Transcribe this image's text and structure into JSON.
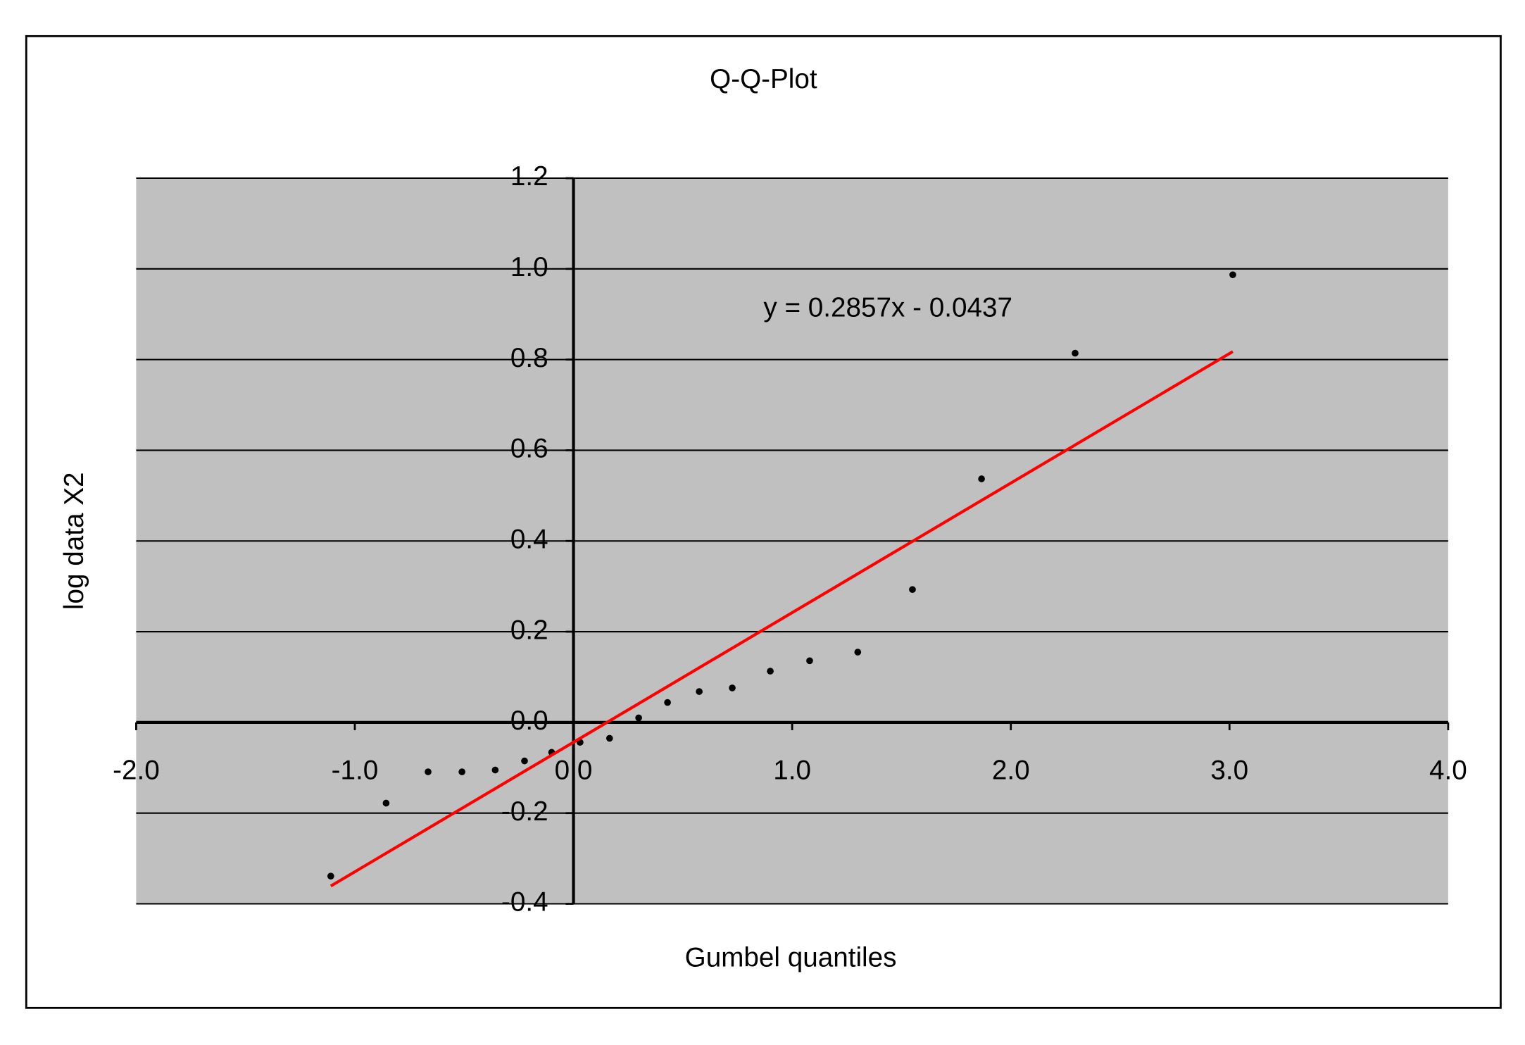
{
  "chart_data": {
    "type": "scatter",
    "title": "Q-Q-Plot",
    "x_label": "Gumbel quantiles",
    "y_label": "log data X2",
    "x": [
      -1.11,
      -0.857,
      -0.665,
      -0.51,
      -0.358,
      -0.224,
      -0.1,
      0.03,
      0.165,
      0.298,
      0.43,
      0.575,
      0.726,
      0.9,
      1.08,
      1.3,
      1.55,
      1.866,
      2.294,
      3.015
    ],
    "values": [
      -0.339,
      -0.178,
      -0.109,
      -0.109,
      -0.105,
      -0.085,
      -0.066,
      -0.044,
      -0.035,
      0.01,
      0.044,
      0.068,
      0.076,
      0.113,
      0.136,
      0.155,
      0.293,
      0.537,
      0.814,
      0.987
    ],
    "color": "#000000",
    "trendline": {
      "equation": "y = 0.2857x - 0.0437",
      "slope": 0.2857,
      "intercept": -0.0437,
      "color": "#ff0000"
    },
    "xlim": [
      -2,
      4
    ],
    "xticks": [
      {
        "value": -2,
        "label": "-2.0"
      },
      {
        "value": -1,
        "label": "-1.0"
      },
      {
        "value": 0,
        "label": "0.0"
      },
      {
        "value": 1,
        "label": "1.0"
      },
      {
        "value": 2,
        "label": "2.0"
      },
      {
        "value": 3,
        "label": "3.0"
      },
      {
        "value": 4,
        "label": "4.0"
      }
    ],
    "ylim": [
      -0.4,
      1.2
    ],
    "yticks": [
      1.2,
      {
        "value": 1,
        "label": "1.0"
      },
      0.8,
      0.6,
      0.4,
      0.2,
      {
        "value": 0,
        "label": "0.0"
      },
      -0.2,
      -0.4
    ],
    "grid": true,
    "plot_background": "#c0c0c0"
  }
}
